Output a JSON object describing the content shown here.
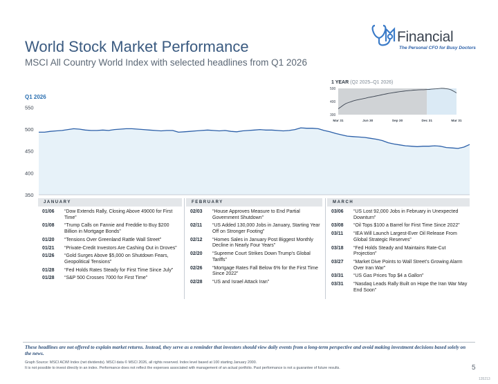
{
  "brand": {
    "name": "Financial",
    "tagline": "The Personal CFO for Busy Doctors",
    "logo_colors": {
      "mark": "#3b7bc8",
      "word": "#3a4350",
      "tagline": "#2a5fa8"
    }
  },
  "header": {
    "title": "World Stock Market Performance",
    "subtitle": "MSCI All Country World Index with selected headlines from Q1 2026"
  },
  "chart_data": [
    {
      "type": "area",
      "title": "Q1 2026",
      "ylim": [
        350,
        560
      ],
      "y_ticks": [
        350,
        400,
        450,
        500,
        550
      ],
      "y_tick_labels": [
        "350",
        "400",
        "450",
        "500",
        "550"
      ],
      "grid": false,
      "series": [
        {
          "name": "MSCI ACWI Index",
          "values": [
            493,
            493,
            495,
            496,
            497,
            499,
            501,
            500,
            498,
            497,
            497,
            498,
            497,
            499,
            500,
            501,
            501,
            500,
            499,
            498,
            497,
            496,
            497,
            497,
            493,
            494,
            495,
            496,
            497,
            498,
            497,
            496,
            497,
            495,
            494,
            496,
            497,
            498,
            499,
            498,
            498,
            497,
            496,
            497,
            499,
            503,
            502,
            502,
            501,
            497,
            494,
            490,
            487,
            484,
            483,
            482,
            481,
            479,
            477,
            474,
            469,
            466,
            464,
            462,
            461,
            460,
            461,
            461,
            462,
            461,
            458,
            457,
            456,
            459,
            465
          ]
        }
      ],
      "colors": {
        "fill": "#e7f2f9",
        "line": "#2b5fa8"
      }
    },
    {
      "type": "area",
      "title": "1 YEAR",
      "title_range": "(Q2 2025–Q1 2026)",
      "ylim": [
        300,
        500
      ],
      "y_tick_labels": [
        "500",
        "400",
        "300"
      ],
      "x_tick_labels": [
        "Mar 31",
        "Jun 30",
        "Sep 30",
        "Dec 31",
        "Mar 31"
      ],
      "series": [
        {
          "name": "MSCI ACWI Index",
          "values": [
            345,
            358,
            372,
            384,
            392,
            398,
            405,
            410,
            414,
            418,
            422,
            426,
            431,
            434,
            438,
            442,
            446,
            450,
            454,
            458,
            462,
            465,
            468,
            471,
            474,
            477,
            479,
            481,
            483,
            485,
            487,
            488,
            489,
            490,
            490,
            491,
            492,
            494,
            496,
            497,
            499,
            501,
            500,
            498,
            495,
            488,
            477,
            466
          ]
        }
      ],
      "colors": {
        "shade": "#d0d3d6",
        "highlight": "#dbeaf5",
        "line": "#3a4350"
      }
    }
  ],
  "months": [
    {
      "label": "JANUARY",
      "entries": [
        {
          "date": "01/06",
          "text": "“Dow Extends Rally, Closing Above 49000 for First Time”"
        },
        {
          "date": "01/08",
          "text": "“Trump Calls on Fannie and Freddie to Buy $200 Billion in Mortgage Bonds”"
        },
        {
          "date": "01/20",
          "text": "“Tensions Over Greenland Rattle Wall Street”"
        },
        {
          "date": "01/21",
          "text": "“Private-Credit Investors Are Cashing Out in Droves”"
        },
        {
          "date": "01/26",
          "text": "“Gold Surges Above $5,000 on Shutdown Fears, Geopolitical Tensions”"
        },
        {
          "date": "01/28",
          "text": "“Fed Holds Rates Steady for First Time Since July”"
        },
        {
          "date": "01/28",
          "text": "“S&P 500 Crosses 7000 for First Time”"
        }
      ]
    },
    {
      "label": "FEBRUARY",
      "entries": [
        {
          "date": "02/03",
          "text": "“House Approves Measure to End Partial Government Shutdown”"
        },
        {
          "date": "02/11",
          "text": "“US Added 130,000 Jobs in January, Starting Year Off on Stronger Footing”"
        },
        {
          "date": "02/12",
          "text": "“Homes Sales in January Post Biggest Monthly Decline in Nearly Four Years”"
        },
        {
          "date": "02/20",
          "text": "“Supreme Court Strikes Down Trump’s Global Tariffs”"
        },
        {
          "date": "02/26",
          "text": "“Mortgage Rates Fall Below 6% for the First Time Since 2022”"
        },
        {
          "date": "02/28",
          "text": "“US and Israel Attack Iran”"
        }
      ]
    },
    {
      "label": "MARCH",
      "entries": [
        {
          "date": "03/06",
          "text": "“US Lost 92,000 Jobs in February in Unexpected Downturn”"
        },
        {
          "date": "03/08",
          "text": "“Oil Tops $100 a Barrel for First Time Since 2022”"
        },
        {
          "date": "03/11",
          "text": "“IEA Will Launch Largest-Ever Oil Release From Global Strategic Reserves”"
        },
        {
          "date": "03/18",
          "text": "“Fed Holds Steady and Maintains Rate-Cut Projection”"
        },
        {
          "date": "03/27",
          "text": "“Market Dive Points to Wall Street’s Growing Alarm Over Iran War”"
        },
        {
          "date": "03/31",
          "text": "“US Gas Prices Top $4 a Gallon”"
        },
        {
          "date": "03/31",
          "text": "“Nasdaq Leads Rally Built on Hope the Iran War May End Soon”"
        }
      ]
    }
  ],
  "footer": {
    "note": "These headlines are not offered to explain market returns. Instead, they serve as a reminder that investors should view daily events from a long-term perspective and avoid making investment decisions based solely on the news.",
    "source": "Graph Source: MSCI ACWI Index (net dividends). MSCI data © MSCI 2026, all rights reserved. Index level based at 100 starting January 2000.",
    "disclaimer": "It is not possible to invest directly in an index. Performance does not reflect the expenses associated with management of an actual portfolio. Past performance is not a guarantee of future results.",
    "page_number": "5",
    "doc_code": "135213"
  }
}
